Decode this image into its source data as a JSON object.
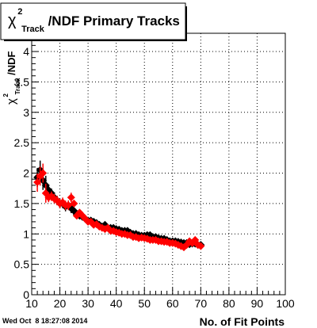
{
  "chart_data": {
    "type": "scatter",
    "title_main": "/NDF Primary Tracks",
    "title_chi": "χ",
    "title_sup": "2",
    "title_sub": "Track",
    "xlabel": "No. of Fit Points",
    "ylabel_main": "/NDF",
    "ylabel_chi": "χ",
    "ylabel_sup": "2",
    "ylabel_sub": "Track",
    "xlim": [
      10,
      100
    ],
    "ylim": [
      0,
      4.3
    ],
    "x_ticks": [
      "10",
      "20",
      "30",
      "40",
      "50",
      "60",
      "70",
      "80",
      "90",
      "100"
    ],
    "y_ticks": [
      "0",
      "0.5",
      "1",
      "1.5",
      "2",
      "2.5",
      "3",
      "3.5",
      "4"
    ],
    "grid": true,
    "series": [
      {
        "color": "#000000",
        "x": [
          12,
          13,
          14,
          15,
          16,
          17,
          18,
          19,
          20,
          21,
          22,
          23,
          24,
          25,
          26,
          27,
          28,
          29,
          30,
          31,
          32,
          33,
          34,
          35,
          36,
          37,
          38,
          39,
          40,
          41,
          42,
          43,
          44,
          45,
          46,
          47,
          48,
          49,
          50,
          51,
          52,
          53,
          54,
          55,
          56,
          57,
          58,
          59,
          60,
          61,
          62,
          63,
          64,
          65,
          66,
          67,
          68,
          69,
          70
        ],
        "y": [
          1.93,
          2.05,
          1.88,
          1.8,
          1.72,
          1.67,
          1.6,
          1.55,
          1.5,
          1.5,
          1.45,
          1.47,
          1.42,
          1.38,
          1.32,
          1.3,
          1.28,
          1.25,
          1.22,
          1.22,
          1.2,
          1.18,
          1.15,
          1.12,
          1.15,
          1.1,
          1.1,
          1.1,
          1.08,
          1.07,
          1.05,
          1.05,
          1.05,
          1.02,
          1.0,
          1.0,
          0.98,
          0.97,
          0.97,
          0.98,
          0.98,
          0.95,
          0.95,
          0.93,
          0.92,
          0.92,
          0.9,
          0.88,
          0.88,
          0.88,
          0.87,
          0.86,
          0.85,
          0.85,
          0.83,
          0.84,
          0.84,
          0.82,
          0.82
        ]
      },
      {
        "color": "#ff0000",
        "x": [
          12,
          13,
          14,
          15,
          16,
          17,
          18,
          19,
          20,
          21,
          22,
          23,
          24,
          25,
          26,
          27,
          28,
          29,
          30,
          31,
          32,
          33,
          34,
          35,
          36,
          37,
          38,
          39,
          40,
          41,
          42,
          43,
          44,
          45,
          46,
          47,
          48,
          49,
          50,
          51,
          52,
          53,
          54,
          55,
          56,
          57,
          58,
          59,
          60,
          61,
          62,
          63,
          64,
          65,
          66,
          67,
          68,
          69,
          70
        ],
        "y": [
          1.85,
          1.95,
          2.0,
          1.67,
          1.6,
          1.62,
          1.58,
          1.55,
          1.5,
          1.52,
          1.47,
          1.47,
          1.6,
          1.5,
          1.3,
          1.35,
          1.3,
          1.25,
          1.2,
          1.2,
          1.15,
          1.16,
          1.12,
          1.1,
          1.08,
          1.1,
          1.05,
          1.05,
          1.03,
          1.02,
          1.0,
          1.0,
          0.98,
          0.98,
          0.95,
          0.95,
          0.93,
          0.94,
          0.93,
          0.92,
          0.9,
          0.9,
          0.9,
          0.88,
          0.88,
          0.87,
          0.87,
          0.85,
          0.85,
          0.84,
          0.82,
          0.8,
          0.78,
          0.82,
          0.88,
          0.85,
          0.9,
          0.82,
          0.8
        ]
      }
    ]
  },
  "footer": {
    "timestamp": "Wed Oct  8 18:27:08 2014"
  }
}
